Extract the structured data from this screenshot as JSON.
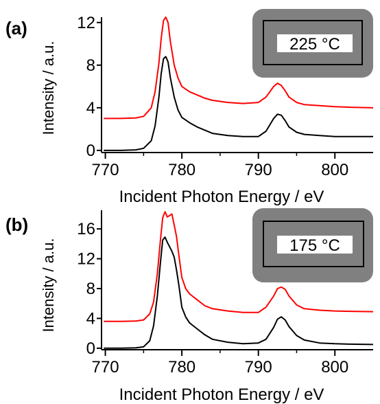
{
  "chart_data": [
    {
      "type": "line",
      "panel_label": "(a)",
      "inset_label": "225 °C",
      "xlabel": "Incident Photon Energy / eV",
      "ylabel": "Intensity / a.u.",
      "xlim": [
        769.5,
        805
      ],
      "ylim": [
        -0.2,
        12.5
      ],
      "xticks": [
        770,
        780,
        790,
        800
      ],
      "xtick_labels": [
        "770",
        "780",
        "790",
        "800"
      ],
      "yticks": [
        0,
        4,
        8,
        12
      ],
      "ytick_labels": [
        "0",
        "4",
        "8",
        "12"
      ],
      "grid": false,
      "series": [
        {
          "color": "#ff0000",
          "x": [
            769.8,
            772,
            774,
            775,
            776,
            776.5,
            777,
            777.3,
            777.6,
            777.9,
            778.2,
            778.5,
            779,
            779.5,
            780,
            781,
            782,
            783,
            784,
            786,
            788,
            790,
            791,
            792,
            792.5,
            793,
            793.5,
            794,
            795,
            796,
            798,
            800,
            802,
            805
          ],
          "y": [
            3.0,
            3.0,
            3.05,
            3.2,
            4.0,
            5.5,
            8.2,
            10.5,
            12.2,
            12.5,
            12.0,
            10.2,
            8.0,
            6.8,
            6.0,
            5.5,
            5.2,
            4.9,
            4.7,
            4.5,
            4.4,
            4.5,
            5.0,
            6.0,
            6.3,
            6.1,
            5.6,
            5.0,
            4.5,
            4.3,
            4.2,
            4.1,
            4.05,
            4.0
          ]
        },
        {
          "color": "#000000",
          "x": [
            769.8,
            772,
            774,
            775,
            776,
            776.5,
            777,
            777.3,
            777.6,
            777.9,
            778.2,
            778.5,
            779,
            779.5,
            780,
            781,
            782,
            783,
            784,
            786,
            788,
            790,
            791,
            792,
            792.5,
            793,
            793.5,
            794,
            795,
            796,
            798,
            800,
            802,
            805
          ],
          "y": [
            0.0,
            0.0,
            0.05,
            0.2,
            0.9,
            2.3,
            5.0,
            7.2,
            8.6,
            8.8,
            8.3,
            6.8,
            5.0,
            3.8,
            3.1,
            2.6,
            2.2,
            1.9,
            1.6,
            1.4,
            1.3,
            1.3,
            1.8,
            3.0,
            3.4,
            3.3,
            2.8,
            2.2,
            1.7,
            1.5,
            1.4,
            1.3,
            1.3,
            1.3
          ]
        }
      ]
    },
    {
      "type": "line",
      "panel_label": "(b)",
      "inset_label": "175 °C",
      "xlabel": "Incident Photon Energy / eV",
      "ylabel": "Intensity / a.u.",
      "xlim": [
        769.5,
        805
      ],
      "ylim": [
        -0.2,
        18.5
      ],
      "xticks": [
        770,
        780,
        790,
        800
      ],
      "xtick_labels": [
        "770",
        "780",
        "790",
        "800"
      ],
      "yticks": [
        0,
        4,
        8,
        12,
        16
      ],
      "ytick_labels": [
        "0",
        "4",
        "8",
        "12",
        "16"
      ],
      "grid": false,
      "series": [
        {
          "color": "#ff0000",
          "x": [
            769.8,
            772,
            774,
            775,
            775.8,
            776.3,
            776.8,
            777.2,
            777.5,
            777.8,
            778.1,
            778.4,
            778.7,
            779,
            779.3,
            779.6,
            780,
            780.5,
            781,
            782,
            783,
            784,
            786,
            788,
            790,
            791,
            792,
            792.5,
            793,
            793.5,
            794,
            795,
            796,
            798,
            800,
            802,
            805
          ],
          "y": [
            3.6,
            3.6,
            3.65,
            3.8,
            4.6,
            6.2,
            10.0,
            14.5,
            17.5,
            18.3,
            17.6,
            17.8,
            18.0,
            16.5,
            15.0,
            12.5,
            9.5,
            8.0,
            7.3,
            6.5,
            5.7,
            5.3,
            5.0,
            4.8,
            4.8,
            5.5,
            7.0,
            8.0,
            8.2,
            7.9,
            7.0,
            5.8,
            5.3,
            5.1,
            5.0,
            4.95,
            4.9
          ]
        },
        {
          "color": "#000000",
          "x": [
            769.8,
            772,
            774,
            775,
            775.8,
            776.3,
            776.8,
            777.2,
            777.5,
            777.8,
            778.1,
            778.4,
            778.7,
            779,
            779.3,
            779.6,
            780,
            780.5,
            781,
            782,
            783,
            784,
            786,
            788,
            790,
            791,
            792,
            792.5,
            793,
            793.5,
            794,
            795,
            796,
            798,
            800,
            802,
            805
          ],
          "y": [
            0.0,
            0.0,
            0.05,
            0.2,
            1.0,
            3.0,
            7.0,
            11.5,
            14.5,
            14.9,
            14.2,
            13.6,
            13.0,
            12.2,
            10.5,
            8.5,
            5.5,
            4.2,
            3.4,
            2.6,
            1.8,
            1.2,
            0.8,
            0.6,
            0.7,
            1.2,
            2.8,
            3.9,
            4.2,
            3.8,
            2.9,
            1.7,
            1.1,
            0.7,
            0.6,
            0.55,
            0.5
          ]
        }
      ]
    }
  ]
}
